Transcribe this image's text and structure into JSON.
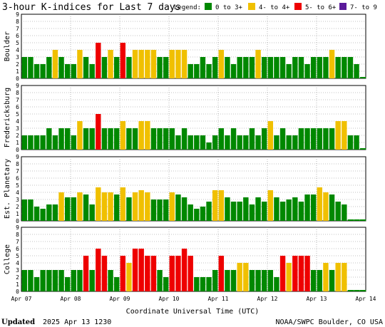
{
  "header": {
    "title": "3-hour K-indices for Last 7 days",
    "legend_label": "Legend:",
    "legend": [
      {
        "label": "0 to 3+",
        "color": "#008800"
      },
      {
        "label": "4- to 4+",
        "color": "#f0c000"
      },
      {
        "label": "5- to 6+",
        "color": "#ee0000"
      },
      {
        "label": "7- to 9",
        "color": "#5a1a9a"
      }
    ]
  },
  "footer": {
    "updated_label": "Updated",
    "updated_value": "2025 Apr 13 1230",
    "credit": "NOAA/SWPC Boulder, CO USA"
  },
  "chart_data": {
    "type": "bar",
    "xlabel": "Coordinate Universal Time (UTC)",
    "x_ticks": [
      "Apr 07",
      "Apr 08",
      "Apr 09",
      "Apr 10",
      "Apr 11",
      "Apr 12",
      "Apr 13",
      "Apr 14"
    ],
    "ylim": [
      0,
      9
    ],
    "y_ticks": [
      0,
      1,
      2,
      3,
      4,
      5,
      6,
      7,
      8,
      9
    ],
    "grid": true,
    "bins_per_day": 8,
    "days": 7,
    "color_thresholds": {
      "green_below": 4,
      "yellow_below": 5,
      "red_below": 7
    },
    "panels": [
      {
        "name": "Boulder",
        "values": [
          3,
          3,
          2,
          2,
          3,
          4,
          3,
          2,
          2,
          4,
          3,
          2,
          5,
          3,
          4,
          3,
          5,
          3,
          4,
          4,
          4,
          4,
          3,
          3,
          4,
          4,
          4,
          2,
          2,
          3,
          2,
          3,
          4,
          3,
          2,
          3,
          3,
          3,
          4,
          3,
          3,
          3,
          3,
          2,
          3,
          3,
          2,
          3,
          3,
          3,
          4,
          3,
          3,
          3,
          2,
          0
        ]
      },
      {
        "name": "Fredericksburg",
        "values": [
          2,
          2,
          2,
          2,
          3,
          2,
          3,
          3,
          2,
          4,
          3,
          3,
          5,
          3,
          3,
          3,
          4,
          3,
          3,
          4,
          4,
          3,
          3,
          3,
          3,
          2,
          3,
          2,
          2,
          2,
          1,
          2,
          3,
          2,
          3,
          2,
          2,
          3,
          2,
          3,
          4,
          2,
          3,
          2,
          2,
          3,
          3,
          3,
          3,
          3,
          3,
          4,
          4,
          2,
          2,
          0
        ]
      },
      {
        "name": "Est. Planetary",
        "values": [
          3,
          3,
          2,
          1.7,
          2.3,
          2.3,
          4,
          3.3,
          3.3,
          4,
          3.7,
          2.3,
          4.7,
          4,
          4,
          3.7,
          4.7,
          3.3,
          4,
          4.3,
          4,
          3,
          3,
          3,
          4,
          3.7,
          3.3,
          2.3,
          1.7,
          2,
          2.7,
          4.3,
          4.3,
          3.3,
          2.7,
          2.7,
          3.3,
          2.3,
          3.3,
          2.7,
          4.3,
          3.3,
          2.7,
          3,
          3.3,
          2.7,
          3.7,
          3.7,
          4.7,
          4,
          3.7,
          2.7,
          2.3,
          0,
          0,
          0
        ]
      },
      {
        "name": "College",
        "values": [
          3,
          3,
          2,
          3,
          3,
          3,
          3,
          2,
          3,
          3,
          5,
          3,
          6,
          5,
          3,
          2,
          5,
          4,
          6,
          6,
          5,
          5,
          3,
          2,
          5,
          5,
          6,
          5,
          2,
          2,
          2,
          3,
          5,
          3,
          3,
          4,
          4,
          3,
          3,
          3,
          3,
          2,
          5,
          4,
          5,
          5,
          5,
          3,
          3,
          4,
          3,
          4,
          4,
          0,
          0,
          0
        ]
      }
    ]
  }
}
